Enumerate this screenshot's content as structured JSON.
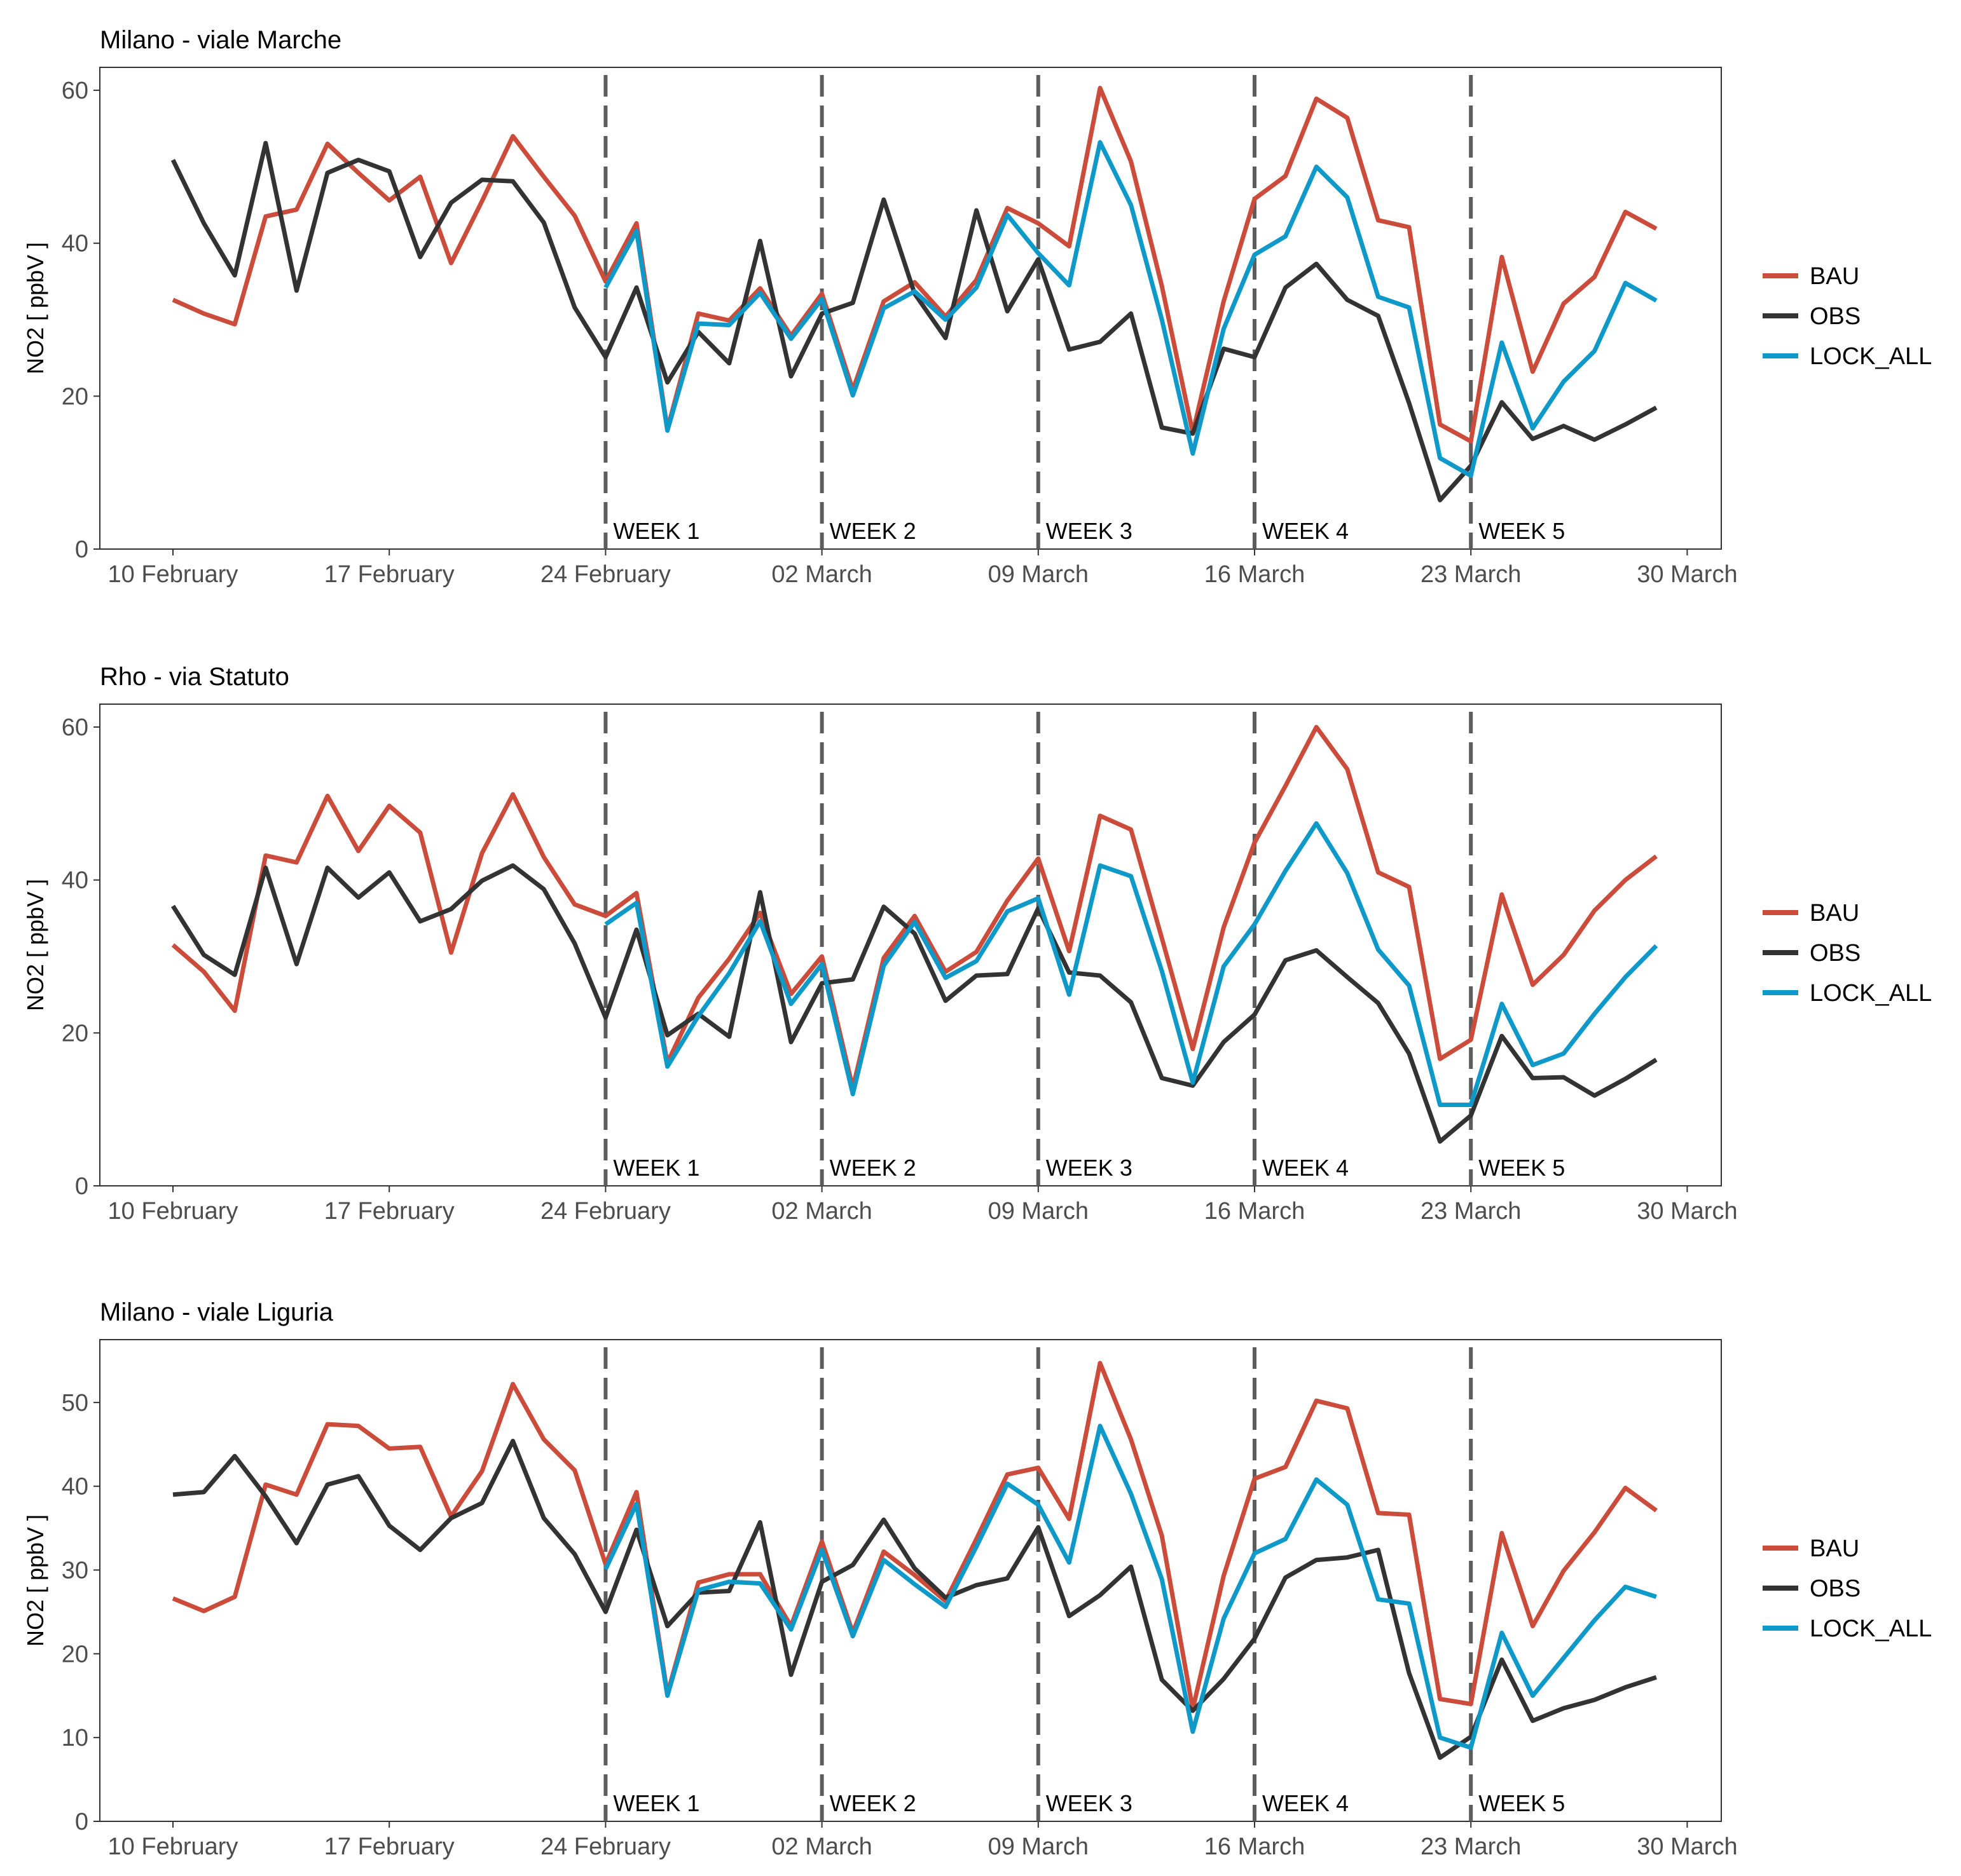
{
  "legend": [
    {
      "label": "BAU",
      "color": "#cc4c3b"
    },
    {
      "label": "OBS",
      "color": "#333333"
    },
    {
      "label": "LOCK_ALL",
      "color": "#0f99c9"
    }
  ],
  "chart_data": [
    {
      "type": "line",
      "title": "Milano - viale Marche",
      "ylabel": "NO2  [ ppbV ]",
      "xlabel": "",
      "x_start": "2020-02-10",
      "x_ticks": [
        "10 February",
        "17 February",
        "24 February",
        "02 March",
        "09 March",
        "16 March",
        "23 March",
        "30 March"
      ],
      "xlim": [
        "2020-02-10",
        "2020-03-30"
      ],
      "ylim": [
        0,
        63
      ],
      "y_ticks": [
        0,
        20,
        40,
        60
      ],
      "grid": false,
      "legend_position": "right",
      "week_markers": [
        {
          "date": "2020-02-24",
          "label": "WEEK 1"
        },
        {
          "date": "2020-03-02",
          "label": "WEEK 2"
        },
        {
          "date": "2020-03-09",
          "label": "WEEK 3"
        },
        {
          "date": "2020-03-16",
          "label": "WEEK 4"
        },
        {
          "date": "2020-03-23",
          "label": "WEEK 5"
        }
      ],
      "series": [
        {
          "name": "BAU",
          "color": "#cc4c3b",
          "values": [
            32.6,
            30.8,
            29.4,
            43.5,
            44.4,
            53.0,
            49.2,
            45.6,
            48.7,
            37.4,
            45.5,
            54.0,
            48.7,
            43.6,
            35.0,
            42.6,
            15.7,
            30.8,
            29.9,
            34.1,
            27.9,
            33.4,
            20.8,
            32.4,
            34.9,
            30.4,
            35.2,
            44.6,
            42.6,
            39.6,
            60.3,
            50.7,
            34.4,
            15.2,
            32.4,
            45.8,
            48.8,
            58.9,
            56.4,
            43.0,
            42.1,
            16.3,
            14.1,
            38.2,
            23.2,
            32.1,
            35.6,
            44.1,
            41.9
          ]
        },
        {
          "name": "OBS",
          "color": "#333333",
          "values": [
            50.9,
            42.6,
            35.8,
            53.1,
            33.8,
            49.2,
            50.9,
            49.4,
            38.2,
            45.3,
            48.3,
            48.1,
            42.7,
            31.6,
            25.1,
            34.2,
            21.8,
            28.4,
            24.3,
            40.3,
            22.6,
            30.8,
            32.2,
            45.7,
            33.4,
            27.6,
            44.3,
            31.1,
            37.9,
            26.1,
            27.1,
            30.8,
            15.9,
            15.1,
            26.2,
            25.1,
            34.2,
            37.3,
            32.6,
            30.5,
            19.1,
            6.4,
            10.9,
            19.2,
            14.4,
            16.1,
            14.3,
            16.3,
            18.5
          ]
        },
        {
          "name": "LOCK_ALL",
          "color": "#0f99c9",
          "values": [
            null,
            null,
            null,
            null,
            null,
            null,
            null,
            null,
            null,
            null,
            null,
            null,
            null,
            null,
            34.2,
            41.6,
            15.5,
            29.5,
            29.3,
            33.5,
            27.5,
            32.7,
            20.1,
            31.5,
            33.7,
            30.0,
            34.2,
            43.7,
            38.7,
            34.5,
            53.2,
            45.0,
            30.0,
            12.5,
            28.8,
            38.5,
            40.9,
            50.0,
            46.0,
            33.0,
            31.6,
            11.9,
            9.6,
            27.0,
            15.8,
            21.9,
            25.9,
            34.8,
            32.5
          ]
        }
      ]
    },
    {
      "type": "line",
      "title": "Rho - via Statuto",
      "ylabel": "NO2  [ ppbV ]",
      "xlabel": "",
      "x_start": "2020-02-10",
      "x_ticks": [
        "10 February",
        "17 February",
        "24 February",
        "02 March",
        "09 March",
        "16 March",
        "23 March",
        "30 March"
      ],
      "xlim": [
        "2020-02-10",
        "2020-03-30"
      ],
      "ylim": [
        0,
        63
      ],
      "y_ticks": [
        0,
        20,
        40,
        60
      ],
      "grid": false,
      "legend_position": "right",
      "week_markers": [
        {
          "date": "2020-02-24",
          "label": "WEEK 1"
        },
        {
          "date": "2020-03-02",
          "label": "WEEK 2"
        },
        {
          "date": "2020-03-09",
          "label": "WEEK 3"
        },
        {
          "date": "2020-03-16",
          "label": "WEEK 4"
        },
        {
          "date": "2020-03-23",
          "label": "WEEK 5"
        }
      ],
      "series": [
        {
          "name": "BAU",
          "color": "#cc4c3b",
          "values": [
            31.5,
            28.0,
            22.9,
            43.2,
            42.3,
            51.0,
            43.8,
            49.7,
            46.2,
            30.5,
            43.5,
            51.2,
            43.0,
            36.8,
            35.3,
            38.3,
            16.1,
            24.6,
            29.7,
            35.7,
            25.1,
            30.0,
            12.8,
            29.8,
            35.3,
            28.0,
            30.6,
            37.3,
            42.8,
            30.7,
            48.4,
            46.6,
            32.4,
            17.9,
            33.8,
            44.9,
            52.3,
            60.0,
            54.5,
            41.0,
            39.1,
            16.6,
            19.1,
            38.1,
            26.3,
            30.2,
            36.0,
            40.0,
            43.1
          ]
        },
        {
          "name": "OBS",
          "color": "#333333",
          "values": [
            36.6,
            30.2,
            27.6,
            41.6,
            29.0,
            41.6,
            37.7,
            41.0,
            34.6,
            36.2,
            39.9,
            41.9,
            38.8,
            31.7,
            22.0,
            33.5,
            19.7,
            22.5,
            19.5,
            38.4,
            18.8,
            26.5,
            27.0,
            36.5,
            33.0,
            24.2,
            27.5,
            27.7,
            36.3,
            27.9,
            27.5,
            24.0,
            14.1,
            13.1,
            18.8,
            22.4,
            29.5,
            30.8,
            27.3,
            23.9,
            17.3,
            5.8,
            9.2,
            19.6,
            14.1,
            14.2,
            11.8,
            14.0,
            16.5
          ]
        },
        {
          "name": "LOCK_ALL",
          "color": "#0f99c9",
          "values": [
            null,
            null,
            null,
            null,
            null,
            null,
            null,
            null,
            null,
            null,
            null,
            null,
            null,
            null,
            34.2,
            37.0,
            15.6,
            22.2,
            27.8,
            34.6,
            23.8,
            29.0,
            12.0,
            28.8,
            34.5,
            27.2,
            29.4,
            35.9,
            37.6,
            25.0,
            41.9,
            40.5,
            28.1,
            13.5,
            28.7,
            34.2,
            41.2,
            47.4,
            40.9,
            30.9,
            26.2,
            10.6,
            10.6,
            23.8,
            15.8,
            17.3,
            22.5,
            27.3,
            31.4
          ]
        }
      ]
    },
    {
      "type": "line",
      "title": "Milano - viale Liguria",
      "ylabel": "NO2  [ ppbV ]",
      "xlabel": "",
      "x_start": "2020-02-10",
      "x_ticks": [
        "10 February",
        "17 February",
        "24 February",
        "02 March",
        "09 March",
        "16 March",
        "23 March",
        "30 March"
      ],
      "xlim": [
        "2020-02-10",
        "2020-03-30"
      ],
      "ylim": [
        0,
        57.5
      ],
      "y_ticks": [
        0,
        10,
        20,
        30,
        40,
        50
      ],
      "grid": false,
      "legend_position": "right",
      "week_markers": [
        {
          "date": "2020-02-24",
          "label": "WEEK 1"
        },
        {
          "date": "2020-03-02",
          "label": "WEEK 2"
        },
        {
          "date": "2020-03-09",
          "label": "WEEK 3"
        },
        {
          "date": "2020-03-16",
          "label": "WEEK 4"
        },
        {
          "date": "2020-03-23",
          "label": "WEEK 5"
        }
      ],
      "series": [
        {
          "name": "BAU",
          "color": "#cc4c3b",
          "values": [
            26.6,
            25.1,
            26.8,
            40.2,
            39.0,
            47.4,
            47.2,
            44.5,
            44.7,
            36.4,
            41.8,
            52.2,
            45.6,
            41.9,
            30.7,
            39.3,
            15.2,
            28.5,
            29.5,
            29.5,
            23.3,
            33.4,
            22.5,
            32.2,
            29.4,
            26.3,
            33.7,
            41.4,
            42.2,
            36.1,
            54.7,
            45.6,
            34.1,
            13.4,
            29.3,
            40.9,
            42.3,
            50.2,
            49.3,
            36.8,
            36.6,
            14.6,
            14.0,
            34.4,
            23.3,
            29.9,
            34.5,
            39.8,
            37.1
          ]
        },
        {
          "name": "OBS",
          "color": "#333333",
          "values": [
            39.0,
            39.3,
            43.6,
            38.8,
            33.2,
            40.2,
            41.2,
            35.3,
            32.4,
            36.2,
            38.0,
            45.4,
            36.2,
            31.9,
            25.0,
            34.8,
            23.3,
            27.3,
            27.5,
            35.7,
            17.5,
            28.6,
            30.6,
            36.0,
            30.2,
            26.7,
            28.2,
            29.0,
            35.1,
            24.5,
            27.0,
            30.4,
            16.9,
            13.2,
            17.0,
            21.8,
            29.1,
            31.2,
            31.5,
            32.4,
            17.7,
            7.6,
            10.1,
            19.3,
            12.0,
            13.5,
            14.5,
            16.0,
            17.2
          ]
        },
        {
          "name": "LOCK_ALL",
          "color": "#0f99c9",
          "values": [
            null,
            null,
            null,
            null,
            null,
            null,
            null,
            null,
            null,
            null,
            null,
            null,
            null,
            null,
            30.1,
            37.9,
            15.0,
            27.6,
            28.6,
            28.4,
            22.9,
            32.4,
            22.1,
            31.2,
            28.3,
            25.6,
            32.8,
            40.3,
            37.8,
            30.9,
            47.2,
            39.1,
            28.9,
            10.7,
            24.2,
            32.0,
            33.7,
            40.8,
            37.8,
            26.5,
            26.0,
            10.0,
            8.8,
            22.5,
            15.0,
            19.5,
            24.0,
            28.0,
            26.8
          ]
        }
      ]
    }
  ]
}
